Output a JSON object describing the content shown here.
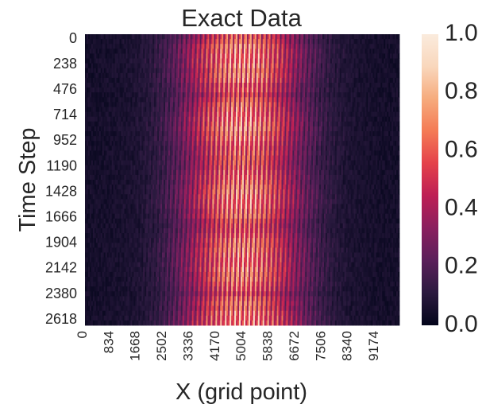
{
  "chart_data": {
    "type": "heatmap",
    "title": "Exact Data",
    "xlabel": "X (grid point)",
    "ylabel": "Time Step",
    "x_ticks": [
      "0",
      "834",
      "1668",
      "2502",
      "3336",
      "4170",
      "5004",
      "5838",
      "6672",
      "7506",
      "8340",
      "9174"
    ],
    "y_ticks": [
      "0",
      "238",
      "476",
      "714",
      "952",
      "1190",
      "1428",
      "1666",
      "1904",
      "2142",
      "2380",
      "2618"
    ],
    "colorbar": {
      "range": [
        0.0,
        1.0
      ],
      "ticks": [
        "0.0",
        "0.2",
        "0.4",
        "0.6",
        "0.8",
        "1.0"
      ],
      "colormap": "rocket"
    },
    "grid": {
      "n_columns": 200,
      "n_rows": 60,
      "description_hint": "vertical stripe pattern; low values at left and right edges, peak intensity in central columns around x≈4170–5838"
    }
  },
  "colors": {
    "background": "#ffffff",
    "text": "#262626",
    "colormap_stops": [
      "#03051a",
      "#2b1a3f",
      "#5a1f5a",
      "#8a1f5e",
      "#bd1f55",
      "#e4414a",
      "#f47a55",
      "#f6ab7d",
      "#f9d7bc",
      "#faebdd"
    ]
  }
}
